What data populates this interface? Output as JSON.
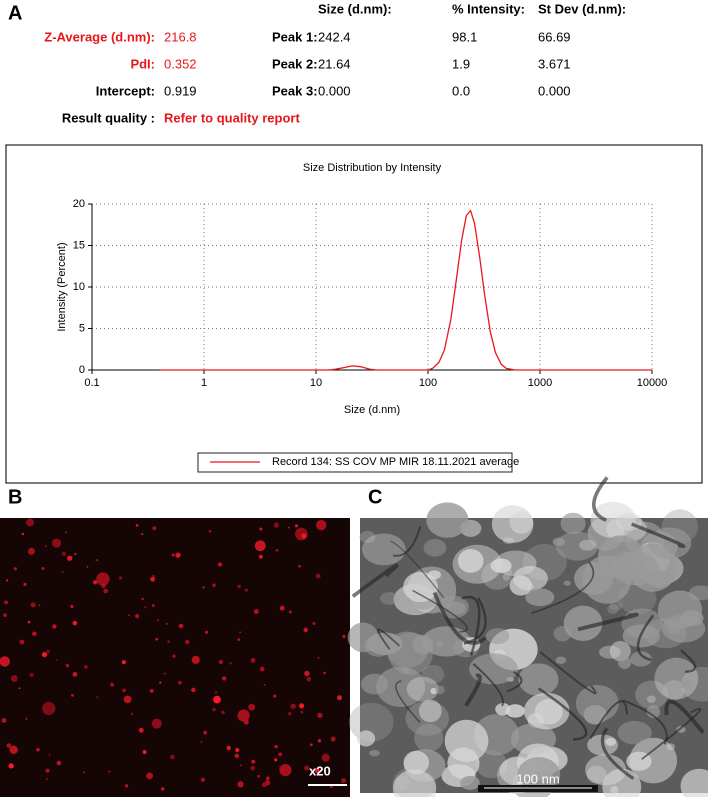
{
  "panel_a": {
    "label": "A",
    "summary": [
      {
        "label": "Z-Average (d.nm):",
        "value": "216.8",
        "color": "#e8161b"
      },
      {
        "label": "PdI:",
        "value": "0.352",
        "color": "#e8161b"
      },
      {
        "label": "Intercept:",
        "value": "0.919",
        "color": "#000000"
      }
    ],
    "result_quality": {
      "label": "Result quality :",
      "value": "Refer to quality report"
    },
    "peaks": {
      "columns": [
        "Size (d.nm):",
        "% Intensity:",
        "St Dev (d.nm):"
      ],
      "rows": [
        [
          "Peak 1:",
          "242.4",
          "98.1",
          "66.69"
        ],
        [
          "Peak 2:",
          "21.64",
          "1.9",
          "3.671"
        ],
        [
          "Peak 3:",
          "0.000",
          "0.0",
          "0.000"
        ]
      ]
    }
  },
  "chart_data": {
    "type": "line",
    "title": "Size Distribution by Intensity",
    "x_label": "Size (d.nm)",
    "y_label": "Intensity (Percent)",
    "xscale": "log",
    "xlim": [
      0.1,
      10000
    ],
    "xticks": [
      0.1,
      1,
      10,
      100,
      1000,
      10000
    ],
    "ylim": [
      0,
      20
    ],
    "yticks": [
      0,
      5,
      10,
      15,
      20
    ],
    "grid": true,
    "legend_position": "bottom",
    "x": [
      0.4,
      0.6,
      0.8,
      1,
      1.5,
      2,
      3,
      4,
      6,
      8,
      10,
      13,
      15,
      18,
      21,
      25,
      30,
      35,
      45,
      60,
      80,
      100,
      110,
      125,
      140,
      160,
      180,
      200,
      220,
      240,
      260,
      290,
      320,
      360,
      400,
      450,
      500,
      600,
      800,
      1000,
      2000,
      3000,
      5000,
      10000
    ],
    "series": [
      {
        "name": "Record 134: SS COV MP MIR 18.11.2021 average",
        "color": "#e8161b",
        "values": [
          0,
          0,
          0,
          0,
          0,
          0,
          0,
          0,
          0,
          0,
          0,
          0,
          0.1,
          0.3,
          0.5,
          0.4,
          0.1,
          0,
          0,
          0,
          0,
          0,
          0.2,
          0.9,
          2.4,
          6.1,
          11.1,
          15.7,
          18.6,
          19.2,
          17.7,
          13.5,
          9.1,
          4.6,
          2.1,
          0.7,
          0.2,
          0,
          0,
          0,
          0,
          0,
          0,
          0
        ]
      }
    ]
  },
  "panel_b": {
    "label": "B",
    "scale": "x20"
  },
  "panel_c": {
    "label": "C",
    "scale": "100 nm"
  }
}
